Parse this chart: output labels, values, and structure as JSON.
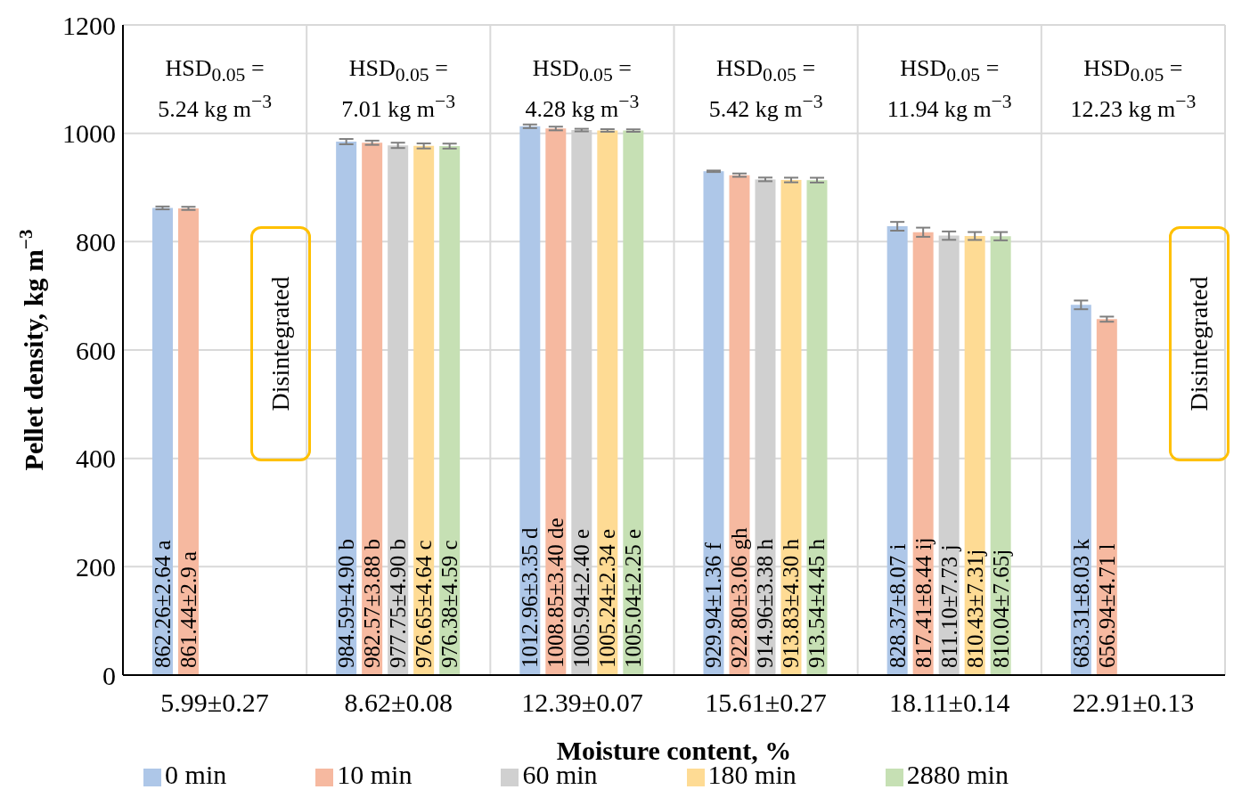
{
  "chart_data": {
    "type": "bar",
    "xlabel": "Moisture content, %",
    "ylabel": "Pellet density, kg m$^{−3}$",
    "categories": [
      "5.99±0.27",
      "8.62±0.08",
      "12.39±0.07",
      "15.61±0.27",
      "18.11±0.14",
      "22.91±0.13"
    ],
    "series": [
      {
        "name": "0 min",
        "color": "#aec7e8",
        "values": [
          862.26,
          984.59,
          1012.96,
          929.94,
          828.37,
          683.31
        ],
        "errors": [
          2.64,
          4.9,
          3.35,
          1.36,
          8.07,
          8.03
        ],
        "value_labels": [
          "862.26±2.64 a",
          "984.59±4.90 b",
          "1012.96±3.35 d",
          "929.94±1.36 f",
          "828.37±8.07 i",
          "683.31±8.03 k"
        ]
      },
      {
        "name": "10 min",
        "color": "#f6b9a0",
        "values": [
          861.44,
          982.57,
          1008.85,
          922.8,
          817.41,
          656.94
        ],
        "errors": [
          2.9,
          3.88,
          3.4,
          3.06,
          8.44,
          4.71
        ],
        "value_labels": [
          "861.44±2.9 a",
          "982.57±3.88 b",
          "1008.85±3.40 de",
          "922.80±3.06 gh",
          "817.41±8.44 ij",
          "656.94±4.71 l"
        ]
      },
      {
        "name": "60 min",
        "color": "#d0d0d0",
        "values": [
          null,
          977.75,
          1005.94,
          914.96,
          811.1,
          null
        ],
        "errors": [
          null,
          4.9,
          2.4,
          3.38,
          7.73,
          null
        ],
        "value_labels": [
          null,
          "977.75±4.90 b",
          "1005.94±2.40 e",
          "914.96±3.38 h",
          "811.10±7.73 j",
          null
        ]
      },
      {
        "name": "180 min",
        "color": "#fedb94",
        "values": [
          null,
          976.65,
          1005.24,
          913.83,
          810.43,
          null
        ],
        "errors": [
          null,
          4.64,
          2.34,
          4.3,
          7.31,
          null
        ],
        "value_labels": [
          null,
          "976.65±4.64 c",
          "1005.24±2.34 e",
          "913.83±4.30 h",
          "810.43±7.31j",
          null
        ]
      },
      {
        "name": "2880 min",
        "color": "#c6e0b4",
        "values": [
          null,
          976.38,
          1005.04,
          913.54,
          810.04,
          null
        ],
        "errors": [
          null,
          4.59,
          2.25,
          4.45,
          7.65,
          null
        ],
        "value_labels": [
          null,
          "976.38±4.59 c",
          "1005.04±2.25 e",
          "913.54±4.45 h",
          "810.04±7.65j",
          null
        ]
      }
    ],
    "ylim": [
      0,
      1200
    ],
    "yticks": [
      0,
      200,
      400,
      600,
      800,
      1000,
      1200
    ],
    "grid": true,
    "legend": "bottom",
    "annotations": [
      "HSD$_{0.05}$ =\n5.24 kg m$^{−3}$",
      "HSD$_{0.05}$ =\n7.01 kg m$^{−3}$",
      "HSD$_{0.05}$ =\n4.28 kg m$^{−3}$",
      "HSD$_{0.05}$ =\n5.42 kg m$^{−3}$",
      "HSD$_{0.05}$ =\n11.94 kg m$^{−3}$",
      "HSD$_{0.05}$ =\n12.23 kg m$^{−3}$",
      "Disintegrated",
      "Disintegrated"
    ]
  }
}
